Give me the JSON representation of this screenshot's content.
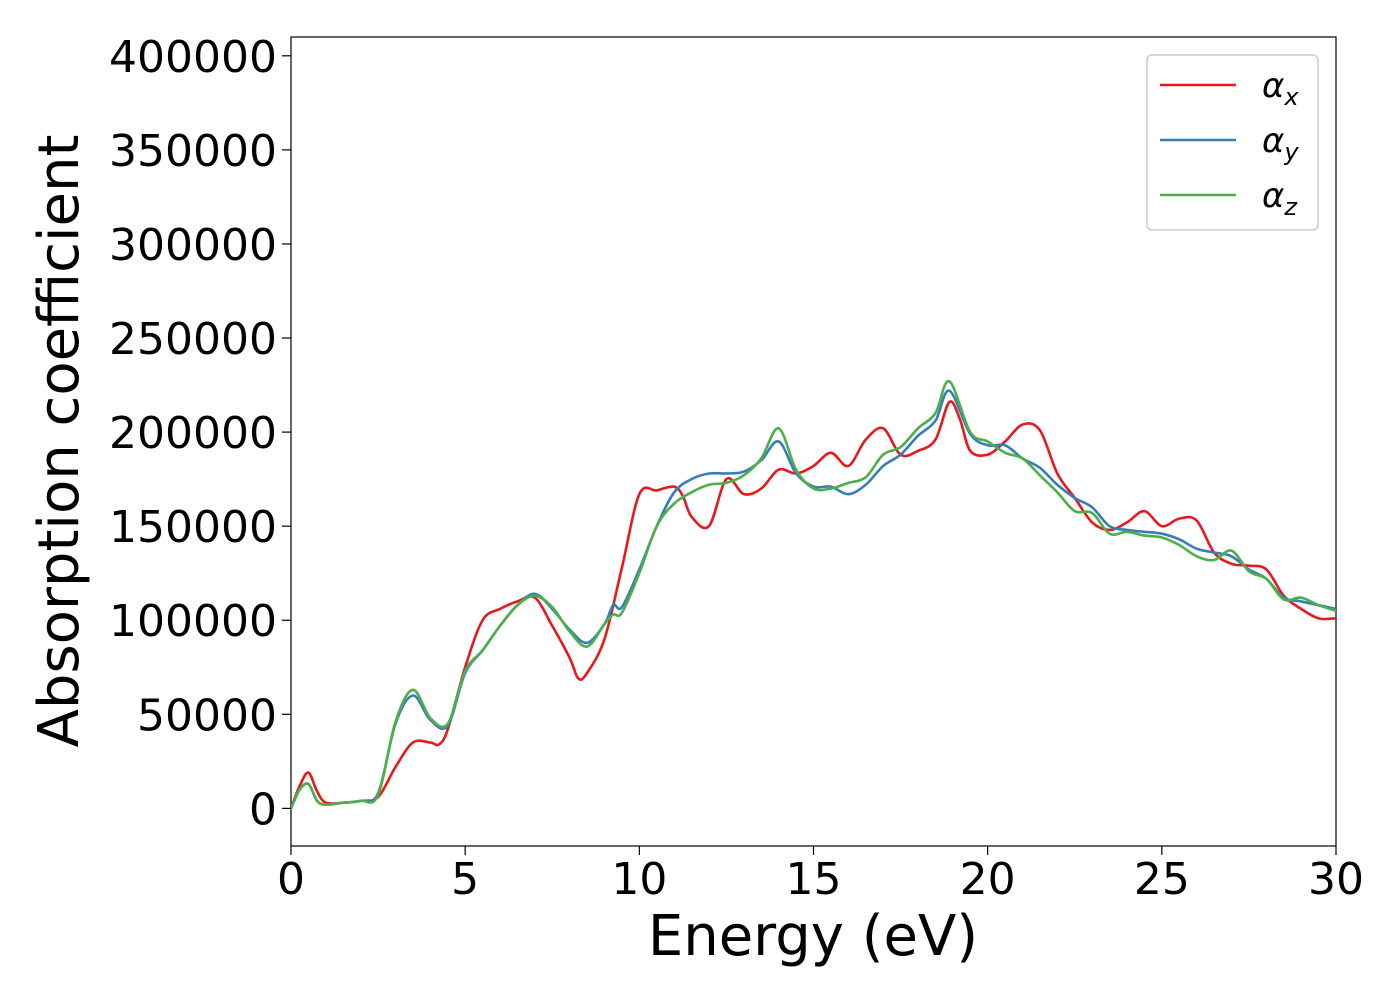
{
  "chart_data": {
    "type": "line",
    "title": "",
    "xlabel": "Energy (eV)",
    "ylabel": "Absorption coefficient",
    "xlim": [
      0,
      30
    ],
    "ylim": [
      -20000,
      410000
    ],
    "xticks": [
      0,
      5,
      10,
      15,
      20,
      25,
      30
    ],
    "xtick_labels": [
      "0",
      "5",
      "10",
      "15",
      "20",
      "25",
      "30"
    ],
    "yticks": [
      0,
      50000,
      100000,
      150000,
      200000,
      250000,
      300000,
      350000,
      400000
    ],
    "ytick_labels": [
      "0",
      "50000",
      "100000",
      "150000",
      "200000",
      "250000",
      "300000",
      "350000",
      "400000"
    ],
    "grid": false,
    "legend_position": "top-right",
    "series": [
      {
        "name": "αx",
        "symbol": "α",
        "subscript": "x",
        "color": "#e41a1c",
        "x": [
          0,
          0.25,
          0.5,
          0.75,
          1.0,
          1.5,
          2.0,
          2.5,
          3.0,
          3.5,
          4.0,
          4.25,
          4.5,
          5.0,
          5.5,
          6.0,
          6.5,
          7.0,
          7.5,
          8.0,
          8.25,
          8.5,
          9.0,
          9.5,
          10.0,
          10.5,
          11.0,
          11.25,
          11.5,
          12.0,
          12.5,
          13.0,
          13.5,
          14.0,
          14.5,
          15.0,
          15.5,
          16.0,
          16.5,
          17.0,
          17.5,
          18.0,
          18.5,
          18.9,
          19.2,
          19.5,
          20.0,
          20.5,
          21.0,
          21.5,
          22.0,
          22.5,
          23.0,
          23.5,
          24.0,
          24.5,
          25.0,
          25.5,
          26.0,
          26.5,
          27.0,
          27.5,
          28.0,
          28.5,
          29.0,
          29.5,
          30.0
        ],
        "y": [
          0,
          12000,
          19000,
          9000,
          3000,
          3000,
          4000,
          6000,
          22000,
          35000,
          35000,
          34000,
          42000,
          75000,
          100000,
          106000,
          110000,
          112000,
          97000,
          80000,
          69000,
          72000,
          90000,
          128000,
          167000,
          169000,
          171000,
          166000,
          155000,
          150000,
          175000,
          167000,
          170000,
          180000,
          178000,
          182000,
          189000,
          182000,
          196000,
          202000,
          188000,
          190000,
          196000,
          216000,
          207000,
          190000,
          188000,
          195000,
          204000,
          201000,
          178000,
          165000,
          152000,
          148000,
          152000,
          158000,
          150000,
          154000,
          153000,
          136000,
          130000,
          129000,
          127000,
          113000,
          106000,
          101000,
          101000
        ]
      },
      {
        "name": "αy",
        "symbol": "α",
        "subscript": "y",
        "color": "#377eb8",
        "x": [
          0,
          0.25,
          0.5,
          0.75,
          1.0,
          1.5,
          2.0,
          2.5,
          3.0,
          3.5,
          4.0,
          4.5,
          5.0,
          5.5,
          6.0,
          6.5,
          7.0,
          7.5,
          8.0,
          8.5,
          9.0,
          9.25,
          9.5,
          10.0,
          10.5,
          11.0,
          11.5,
          12.0,
          12.5,
          13.0,
          13.5,
          14.0,
          14.5,
          15.0,
          15.5,
          16.0,
          16.5,
          17.0,
          17.5,
          18.0,
          18.5,
          18.9,
          19.5,
          20.0,
          20.5,
          21.0,
          21.5,
          22.0,
          22.5,
          23.0,
          23.5,
          24.0,
          24.5,
          25.0,
          25.5,
          26.0,
          26.5,
          27.0,
          27.5,
          28.0,
          28.5,
          29.0,
          29.5,
          30.0
        ],
        "y": [
          0,
          10000,
          13000,
          4000,
          2000,
          3000,
          4000,
          8000,
          45000,
          60000,
          47000,
          44000,
          72000,
          84000,
          97000,
          108000,
          114000,
          106000,
          95000,
          88000,
          98000,
          108000,
          107000,
          127000,
          150000,
          168000,
          175000,
          178000,
          178000,
          179000,
          185000,
          195000,
          178000,
          171000,
          171000,
          167000,
          172000,
          182000,
          188000,
          198000,
          206000,
          222000,
          199000,
          193000,
          193000,
          186000,
          181000,
          172000,
          165000,
          160000,
          150000,
          148000,
          147000,
          146000,
          143000,
          138000,
          136000,
          134000,
          127000,
          122000,
          112000,
          110000,
          108000,
          106000
        ]
      },
      {
        "name": "αz",
        "symbol": "α",
        "subscript": "z",
        "color": "#4daf4a",
        "x": [
          0,
          0.25,
          0.5,
          0.75,
          1.0,
          1.5,
          2.0,
          2.5,
          3.0,
          3.5,
          4.0,
          4.5,
          5.0,
          5.5,
          6.0,
          6.5,
          7.0,
          7.5,
          8.0,
          8.5,
          9.0,
          9.25,
          9.5,
          10.0,
          10.5,
          11.0,
          11.5,
          12.0,
          12.5,
          13.0,
          13.5,
          14.0,
          14.5,
          15.0,
          15.5,
          16.0,
          16.5,
          17.0,
          17.5,
          18.0,
          18.5,
          18.9,
          19.5,
          20.0,
          20.5,
          21.0,
          21.5,
          22.0,
          22.5,
          23.0,
          23.5,
          24.0,
          24.5,
          25.0,
          25.5,
          26.0,
          26.5,
          27.0,
          27.5,
          28.0,
          28.5,
          29.0,
          29.5,
          30.0
        ],
        "y": [
          0,
          10000,
          13000,
          4000,
          2000,
          3000,
          4000,
          7000,
          46000,
          63000,
          48000,
          45000,
          73000,
          84000,
          97000,
          108000,
          113000,
          107000,
          94000,
          86000,
          98000,
          103000,
          104000,
          125000,
          150000,
          162000,
          168000,
          172000,
          173000,
          177000,
          186000,
          202000,
          180000,
          170000,
          170000,
          173000,
          176000,
          188000,
          192000,
          202000,
          210000,
          227000,
          200000,
          195000,
          189000,
          186000,
          177000,
          168000,
          158000,
          157000,
          146000,
          147000,
          145000,
          144000,
          140000,
          134000,
          132000,
          137000,
          126000,
          122000,
          111000,
          112000,
          108000,
          105000
        ]
      }
    ]
  }
}
